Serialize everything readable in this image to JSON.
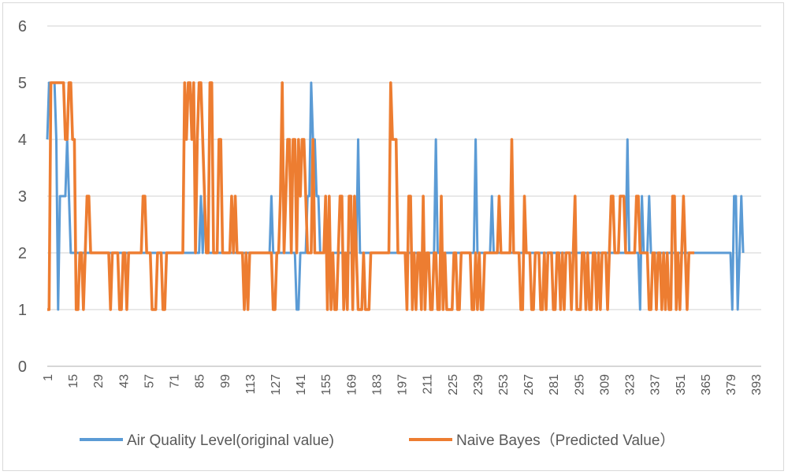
{
  "chart_data": {
    "type": "line",
    "title": "",
    "xlabel": "",
    "ylabel": "",
    "ylim": [
      0,
      6
    ],
    "yticks": [
      0,
      1,
      2,
      3,
      4,
      5,
      6
    ],
    "xlim": [
      1,
      396
    ],
    "xticks": [
      1,
      15,
      29,
      43,
      57,
      71,
      85,
      99,
      113,
      127,
      141,
      155,
      169,
      183,
      197,
      211,
      225,
      239,
      253,
      267,
      281,
      295,
      309,
      323,
      337,
      351,
      365,
      379,
      393
    ],
    "grid": "horizontal",
    "legend_position": "bottom",
    "series": [
      {
        "name": "Air Quality Level(original value)",
        "color": "#5b9bd5",
        "values": [
          4,
          5,
          5,
          5,
          5,
          4,
          1,
          3,
          3,
          3,
          3,
          4,
          3,
          2,
          2,
          2,
          2,
          2,
          2,
          2,
          2,
          2,
          2,
          2,
          2,
          2,
          2,
          2,
          2,
          2,
          2,
          2,
          2,
          2,
          2,
          2,
          2,
          2,
          2,
          2,
          2,
          2,
          2,
          2,
          2,
          2,
          2,
          2,
          2,
          2,
          2,
          2,
          2,
          2,
          2,
          2,
          2,
          2,
          2,
          2,
          2,
          2,
          2,
          2,
          2,
          2,
          2,
          2,
          2,
          2,
          2,
          2,
          2,
          2,
          2,
          2,
          2,
          2,
          2,
          2,
          2,
          2,
          2,
          2,
          2,
          3,
          2,
          3,
          2,
          2,
          2,
          2,
          2,
          2,
          2,
          2,
          2,
          2,
          2,
          2,
          2,
          2,
          2,
          2,
          2,
          2,
          2,
          2,
          2,
          2,
          2,
          2,
          2,
          2,
          2,
          2,
          2,
          2,
          2,
          2,
          2,
          2,
          2,
          2,
          3,
          2,
          2,
          2,
          2,
          2,
          2,
          2,
          2,
          2,
          2,
          2,
          2,
          2,
          1,
          1,
          2,
          2,
          2,
          2,
          3,
          3,
          5,
          4,
          4,
          3,
          3,
          2,
          2,
          2,
          2,
          2,
          2,
          1,
          2,
          2,
          2,
          2,
          2,
          2,
          2,
          2,
          2,
          2,
          2,
          2,
          2,
          2,
          4,
          2,
          2,
          2,
          2,
          2,
          2,
          2,
          2,
          2,
          2,
          2,
          2,
          2,
          2,
          2,
          2,
          2,
          2,
          2,
          2,
          2,
          2,
          2,
          2,
          2,
          2,
          2,
          2,
          2,
          2,
          2,
          2,
          2,
          2,
          2,
          2,
          2,
          2,
          2,
          2,
          2,
          2,
          4,
          2,
          2,
          2,
          2,
          2,
          2,
          2,
          2,
          2,
          2,
          2,
          2,
          2,
          2,
          2,
          2,
          2,
          2,
          2,
          2,
          2,
          4,
          2,
          2,
          2,
          2,
          2,
          2,
          2,
          2,
          3,
          2,
          2,
          2,
          2,
          2,
          2,
          2,
          2,
          2,
          2,
          2,
          2,
          2,
          2,
          2,
          2,
          2,
          2,
          2,
          2,
          2,
          2,
          2,
          2,
          2,
          2,
          2,
          2,
          2,
          2,
          2,
          2,
          2,
          2,
          2,
          2,
          2,
          2,
          2,
          2,
          2,
          2,
          2,
          2,
          2,
          2,
          2,
          2,
          2,
          2,
          2,
          2,
          2,
          2,
          2,
          2,
          2,
          2,
          2,
          2,
          2,
          2,
          2,
          2,
          2,
          2,
          2,
          2,
          2,
          2,
          2,
          2,
          2,
          2,
          4,
          2,
          2,
          2,
          2,
          2,
          2,
          1,
          3,
          2,
          2,
          2,
          3,
          2,
          2,
          2,
          2,
          2,
          2,
          2,
          2,
          2,
          2,
          2,
          2,
          2,
          2,
          2,
          2,
          2,
          2,
          2,
          2,
          2,
          2,
          2,
          2,
          2,
          2,
          2,
          2,
          2,
          2,
          2,
          2,
          2,
          2,
          2,
          2,
          2,
          2,
          2,
          2,
          2,
          2,
          2,
          2,
          2,
          1,
          3,
          3,
          1,
          2,
          3,
          2
        ]
      },
      {
        "name": "Naive Bayes（Predicted Value）",
        "color": "#ed7d31",
        "values": [
          1,
          1,
          5,
          5,
          5,
          5,
          5,
          5,
          5,
          5,
          4,
          4,
          5,
          5,
          4,
          4,
          1,
          1,
          2,
          2,
          1,
          2,
          3,
          3,
          2,
          2,
          2,
          2,
          2,
          2,
          2,
          2,
          2,
          2,
          2,
          1,
          2,
          2,
          2,
          2,
          1,
          1,
          2,
          2,
          1,
          2,
          2,
          2,
          2,
          2,
          2,
          2,
          2,
          3,
          3,
          2,
          2,
          2,
          1,
          1,
          1,
          2,
          2,
          2,
          1,
          1,
          2,
          2,
          2,
          2,
          2,
          2,
          2,
          2,
          2,
          2,
          5,
          4,
          5,
          5,
          4,
          5,
          2,
          4,
          5,
          5,
          4,
          3,
          2,
          2,
          5,
          5,
          2,
          2,
          2,
          4,
          4,
          2,
          2,
          2,
          2,
          2,
          3,
          2,
          3,
          2,
          2,
          2,
          2,
          1,
          2,
          1,
          2,
          2,
          2,
          2,
          2,
          2,
          2,
          2,
          2,
          2,
          2,
          2,
          2,
          1,
          1,
          2,
          2,
          3,
          5,
          2,
          3,
          4,
          4,
          2,
          4,
          4,
          2,
          4,
          3,
          4,
          4,
          3,
          2,
          2,
          2,
          4,
          2,
          2,
          2,
          2,
          2,
          2,
          3,
          1,
          3,
          1,
          2,
          1,
          1,
          2,
          3,
          3,
          1,
          2,
          1,
          3,
          3,
          1,
          3,
          2,
          1,
          1,
          1,
          2,
          1,
          1,
          1,
          2,
          2,
          2,
          2,
          2,
          2,
          2,
          2,
          2,
          2,
          2,
          5,
          4,
          4,
          4,
          2,
          2,
          2,
          2,
          2,
          1,
          3,
          3,
          1,
          2,
          1,
          2,
          2,
          1,
          3,
          1,
          2,
          2,
          1,
          1,
          2,
          2,
          1,
          1,
          3,
          1,
          2,
          1,
          1,
          1,
          1,
          2,
          2,
          1,
          1,
          2,
          2,
          2,
          2,
          2,
          2,
          1,
          1,
          2,
          1,
          2,
          1,
          1,
          2,
          2,
          2,
          2,
          2,
          2,
          2,
          2,
          3,
          2,
          2,
          2,
          2,
          2,
          2,
          4,
          2,
          2,
          2,
          2,
          1,
          1,
          3,
          2,
          2,
          2,
          1,
          1,
          2,
          2,
          2,
          1,
          1,
          2,
          1,
          2,
          2,
          2,
          1,
          1,
          2,
          2,
          1,
          2,
          1,
          2,
          2,
          2,
          1,
          2,
          3,
          1,
          1,
          1,
          2,
          2,
          1,
          2,
          1,
          1,
          2,
          2,
          1,
          2,
          1,
          2,
          2,
          2,
          1,
          2,
          3,
          3,
          2,
          2,
          2,
          3,
          3,
          3,
          2,
          2,
          2,
          2,
          2,
          2,
          3,
          3,
          2,
          2,
          2,
          2,
          2,
          1,
          1,
          2,
          2,
          1,
          2,
          2,
          1,
          2,
          1,
          2,
          1,
          1,
          3,
          3,
          1,
          2,
          1,
          2,
          3,
          2,
          1,
          2,
          2,
          2,
          2
        ]
      }
    ]
  },
  "legend": {
    "series1_label": "Air Quality Level(original value)",
    "series2_label": "Naive Bayes（Predicted Value）"
  }
}
